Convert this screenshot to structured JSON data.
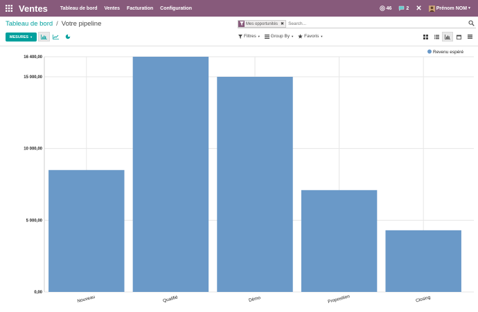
{
  "navbar": {
    "brand": "Ventes",
    "menu": [
      "Tableau de bord",
      "Ventes",
      "Facturation",
      "Configuration"
    ],
    "mentions_count": "46",
    "messages_count": "2",
    "user_name": "Prénom NOM",
    "bg_color": "#875a7b"
  },
  "breadcrumb": {
    "parent": "Tableau de bord",
    "separator": "/",
    "current": "Votre pipeline"
  },
  "search": {
    "facet_label": "Mes opportunités",
    "placeholder": "Search..."
  },
  "toolbar": {
    "measures_label": "MESURES",
    "filters_label": "Filtres",
    "groupby_label": "Group By",
    "favorites_label": "Favoris",
    "accent_color": "#00a09d"
  },
  "chart_data": {
    "type": "bar",
    "categories": [
      "Nouveau",
      "Qualifié",
      "Démo",
      "Proposition",
      "Closing"
    ],
    "series": [
      {
        "name": "Revenu espéré",
        "values": [
          8500,
          16400,
          15000,
          7100,
          4300
        ],
        "color": "#6a99c8"
      }
    ],
    "ylim": [
      0,
      16400
    ],
    "yticks": [
      0,
      5000,
      10000,
      15000,
      16400
    ],
    "ytick_labels": [
      "0,00",
      "5 000,00",
      "10 000,00",
      "15 000,00",
      "16 400,00"
    ],
    "grid": true,
    "legend_position": "top-right",
    "title": "",
    "xlabel": "",
    "ylabel": ""
  }
}
